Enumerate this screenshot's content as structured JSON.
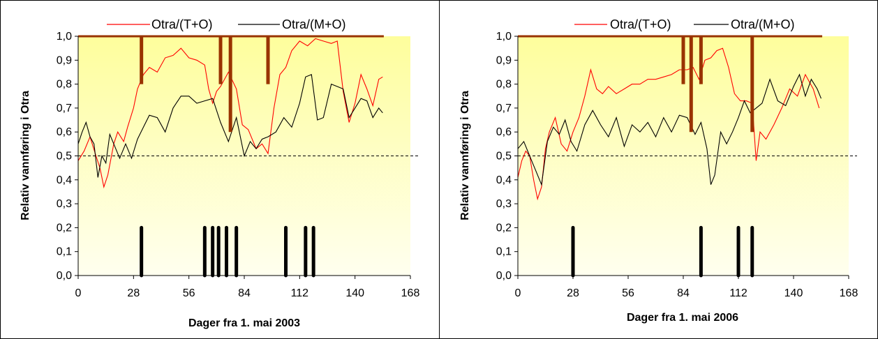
{
  "colors": {
    "plot_bg_top": "#fefe9c",
    "plot_bg_bottom": "#ffffef",
    "series_ot": "#ff0000",
    "series_om": "#000000",
    "top_events": "#993300",
    "bottom_events": "#000000",
    "reference_line": "#000000"
  },
  "chart_data": [
    {
      "type": "line",
      "xlabel": "Dager fra 1. mai 2003",
      "ylabel": "Relativ vannføring i Otra",
      "xlim": [
        0,
        168
      ],
      "ylim": [
        0,
        1.0
      ],
      "xticks": [
        "0",
        "28",
        "56",
        "84",
        "112",
        "140",
        "168"
      ],
      "yticks": [
        "0,0",
        "0,1",
        "0,2",
        "0,3",
        "0,4",
        "0,5",
        "0,6",
        "0,7",
        "0,8",
        "0,9",
        "1,0"
      ],
      "legend": [
        "Otra/(T+O)",
        "Otra/(M+O)"
      ],
      "reference_line_y": 0.5,
      "top_event_markers": [
        {
          "x": 32,
          "y_bottom": 0.8
        },
        {
          "x": 72,
          "y_bottom": 0.8
        },
        {
          "x": 77,
          "y_bottom": 0.6
        },
        {
          "x": 96,
          "y_bottom": 0.8
        }
      ],
      "bottom_event_markers": [
        {
          "x": 32,
          "y_top": 0.2
        },
        {
          "x": 64,
          "y_top": 0.2
        },
        {
          "x": 68,
          "y_top": 0.2
        },
        {
          "x": 71,
          "y_top": 0.2
        },
        {
          "x": 75,
          "y_top": 0.2
        },
        {
          "x": 80,
          "y_top": 0.2
        },
        {
          "x": 105,
          "y_top": 0.2
        },
        {
          "x": 115,
          "y_top": 0.2
        },
        {
          "x": 119,
          "y_top": 0.2
        }
      ],
      "series": [
        {
          "name": "Otra/(T+O)",
          "color": "#ff0000",
          "x": [
            0,
            3,
            6,
            9,
            11,
            13,
            15,
            18,
            20,
            23,
            25,
            28,
            30,
            33,
            36,
            40,
            44,
            48,
            52,
            56,
            60,
            64,
            66,
            68,
            70,
            72,
            76,
            80,
            83,
            86,
            90,
            93,
            96,
            99,
            102,
            105,
            108,
            112,
            116,
            120,
            124,
            128,
            131,
            134,
            137,
            140,
            143,
            146,
            149,
            152,
            154
          ],
          "y": [
            0.48,
            0.52,
            0.58,
            0.5,
            0.45,
            0.37,
            0.42,
            0.55,
            0.6,
            0.56,
            0.62,
            0.7,
            0.78,
            0.84,
            0.87,
            0.85,
            0.91,
            0.92,
            0.95,
            0.91,
            0.9,
            0.88,
            0.78,
            0.72,
            0.77,
            0.79,
            0.85,
            0.78,
            0.63,
            0.61,
            0.53,
            0.55,
            0.51,
            0.7,
            0.84,
            0.87,
            0.94,
            0.98,
            0.96,
            0.99,
            0.98,
            0.97,
            0.98,
            0.77,
            0.64,
            0.72,
            0.84,
            0.78,
            0.71,
            0.82,
            0.83
          ]
        },
        {
          "name": "Otra/(M+O)",
          "color": "#000000",
          "x": [
            0,
            2,
            4,
            6,
            8,
            10,
            12,
            14,
            16,
            18,
            21,
            24,
            27,
            30,
            33,
            36,
            40,
            44,
            48,
            52,
            56,
            60,
            64,
            68,
            72,
            76,
            80,
            84,
            87,
            90,
            93,
            96,
            100,
            104,
            108,
            112,
            115,
            118,
            121,
            124,
            128,
            131,
            134,
            137,
            140,
            143,
            146,
            149,
            152,
            154
          ],
          "y": [
            0.55,
            0.6,
            0.64,
            0.58,
            0.55,
            0.41,
            0.5,
            0.47,
            0.59,
            0.55,
            0.49,
            0.55,
            0.49,
            0.57,
            0.62,
            0.67,
            0.66,
            0.6,
            0.7,
            0.75,
            0.75,
            0.72,
            0.73,
            0.74,
            0.64,
            0.56,
            0.66,
            0.5,
            0.56,
            0.53,
            0.57,
            0.58,
            0.6,
            0.66,
            0.62,
            0.72,
            0.83,
            0.84,
            0.65,
            0.66,
            0.8,
            0.79,
            0.78,
            0.66,
            0.7,
            0.74,
            0.73,
            0.66,
            0.7,
            0.68
          ]
        }
      ]
    },
    {
      "type": "line",
      "xlabel": "Dager fra 1. mai 2006",
      "ylabel": "Relativ vannføring i Otra",
      "xlim": [
        0,
        168
      ],
      "ylim": [
        0,
        1.0
      ],
      "xticks": [
        "0",
        "28",
        "56",
        "84",
        "112",
        "140",
        "168"
      ],
      "yticks": [
        "0,0",
        "0,1",
        "0,2",
        "0,3",
        "0,4",
        "0,5",
        "0,6",
        "0,7",
        "0,8",
        "0,9",
        "1,0"
      ],
      "legend": [
        "Otra/(T+O)",
        "Otra/(M+O)"
      ],
      "reference_line_y": 0.5,
      "top_event_markers": [
        {
          "x": 84,
          "y_bottom": 0.8
        },
        {
          "x": 88,
          "y_bottom": 0.6
        },
        {
          "x": 93,
          "y_bottom": 0.8
        },
        {
          "x": 119,
          "y_bottom": 0.6
        }
      ],
      "bottom_event_markers": [
        {
          "x": 28,
          "y_top": 0.2
        },
        {
          "x": 93,
          "y_top": 0.2
        },
        {
          "x": 112,
          "y_top": 0.2
        },
        {
          "x": 119,
          "y_top": 0.2
        }
      ],
      "series": [
        {
          "name": "Otra/(T+O)",
          "color": "#ff0000",
          "x": [
            0,
            2,
            4,
            6,
            8,
            10,
            12,
            14,
            16,
            19,
            22,
            25,
            28,
            31,
            34,
            37,
            40,
            43,
            46,
            50,
            54,
            58,
            62,
            66,
            70,
            74,
            78,
            82,
            86,
            89,
            92,
            95,
            98,
            101,
            104,
            107,
            110,
            113,
            116,
            119,
            121,
            123,
            126,
            130,
            134,
            138,
            142,
            146,
            150,
            153
          ],
          "y": [
            0.41,
            0.48,
            0.52,
            0.5,
            0.4,
            0.32,
            0.37,
            0.53,
            0.6,
            0.66,
            0.55,
            0.52,
            0.6,
            0.66,
            0.75,
            0.86,
            0.78,
            0.76,
            0.79,
            0.76,
            0.78,
            0.8,
            0.8,
            0.82,
            0.82,
            0.83,
            0.84,
            0.86,
            0.86,
            0.87,
            0.82,
            0.9,
            0.91,
            0.94,
            0.95,
            0.87,
            0.76,
            0.73,
            0.73,
            0.72,
            0.48,
            0.6,
            0.57,
            0.63,
            0.7,
            0.78,
            0.75,
            0.84,
            0.78,
            0.7
          ]
        },
        {
          "name": "Otra/(M+O)",
          "color": "#000000",
          "x": [
            0,
            3,
            6,
            9,
            12,
            15,
            18,
            21,
            24,
            27,
            30,
            34,
            38,
            42,
            46,
            50,
            54,
            58,
            62,
            66,
            70,
            74,
            78,
            82,
            86,
            90,
            93,
            96,
            98,
            100,
            103,
            106,
            109,
            112,
            115,
            118,
            121,
            124,
            128,
            132,
            136,
            140,
            143,
            146,
            149,
            152,
            154
          ],
          "y": [
            0.53,
            0.56,
            0.5,
            0.44,
            0.38,
            0.56,
            0.62,
            0.59,
            0.65,
            0.56,
            0.52,
            0.63,
            0.69,
            0.63,
            0.58,
            0.66,
            0.54,
            0.63,
            0.6,
            0.64,
            0.58,
            0.66,
            0.6,
            0.67,
            0.66,
            0.59,
            0.64,
            0.53,
            0.38,
            0.42,
            0.6,
            0.55,
            0.6,
            0.66,
            0.73,
            0.68,
            0.7,
            0.72,
            0.82,
            0.73,
            0.71,
            0.79,
            0.84,
            0.75,
            0.82,
            0.78,
            0.74
          ]
        }
      ]
    }
  ]
}
